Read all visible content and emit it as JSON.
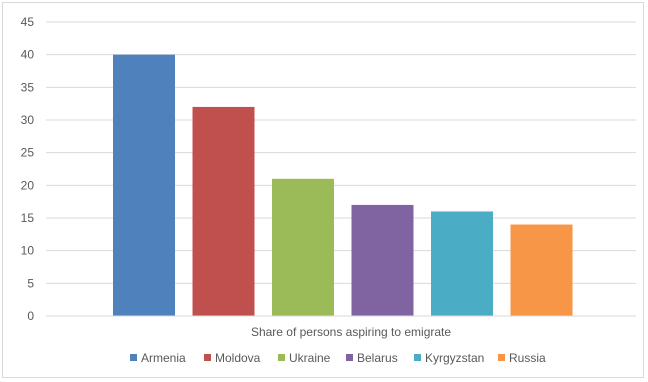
{
  "chart_data": {
    "type": "bar",
    "title": "",
    "xlabel": "Share of persons aspiring to emigrate",
    "ylabel": "",
    "ylim": [
      0,
      45
    ],
    "yticks": [
      0,
      5,
      10,
      15,
      20,
      25,
      30,
      35,
      40,
      45
    ],
    "grid": true,
    "legend_position": "bottom",
    "series": [
      {
        "name": "Armenia",
        "value": 40,
        "color": "#4f81bd"
      },
      {
        "name": "Moldova",
        "value": 32,
        "color": "#c0504d"
      },
      {
        "name": "Ukraine",
        "value": 21,
        "color": "#9bbb59"
      },
      {
        "name": "Belarus",
        "value": 17,
        "color": "#8064a2"
      },
      {
        "name": "Kyrgyzstan",
        "value": 16,
        "color": "#4bacc6"
      },
      {
        "name": "Russia",
        "value": 14,
        "color": "#f79646"
      }
    ]
  }
}
